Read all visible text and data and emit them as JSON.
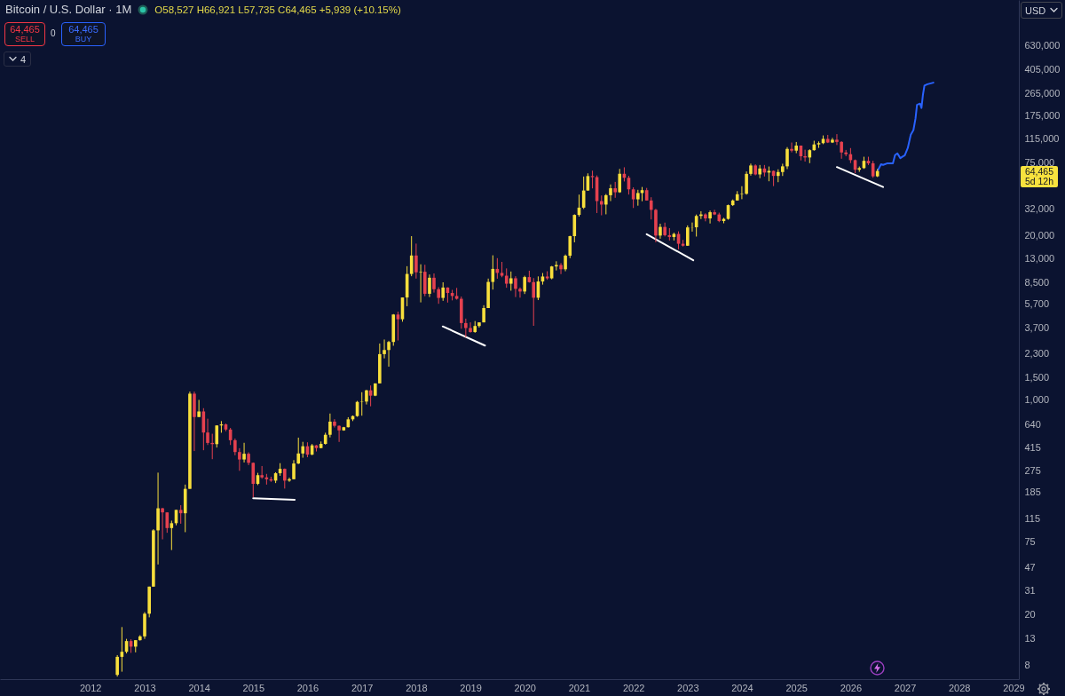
{
  "chart_data": {
    "type": "candlestick",
    "title": "Bitcoin / U.S. Dollar · 1M",
    "annotations": [
      "O58,527 H66,921 L57,735 C64,465 +5,939 (+10.15%)",
      "64,465",
      "SELL",
      "0",
      "64,465",
      "BUY",
      "4",
      "USD",
      "64,465",
      "5d 12h"
    ],
    "x": [
      "2012-07",
      "2012-08",
      "2012-09",
      "2012-10",
      "2012-11",
      "2012-12",
      "2013-01",
      "2013-02",
      "2013-03",
      "2013-04",
      "2013-05",
      "2013-06",
      "2013-07",
      "2013-08",
      "2013-09",
      "2013-10",
      "2013-11",
      "2013-12",
      "2014-01",
      "2014-02",
      "2014-03",
      "2014-04",
      "2014-05",
      "2014-06",
      "2014-07",
      "2014-08",
      "2014-09",
      "2014-10",
      "2014-11",
      "2014-12",
      "2015-01",
      "2015-02",
      "2015-03",
      "2015-04",
      "2015-05",
      "2015-06",
      "2015-07",
      "2015-08",
      "2015-09",
      "2015-10",
      "2015-11",
      "2015-12",
      "2016-01",
      "2016-02",
      "2016-03",
      "2016-04",
      "2016-05",
      "2016-06",
      "2016-07",
      "2016-08",
      "2016-09",
      "2016-10",
      "2016-11",
      "2016-12",
      "2017-01",
      "2017-02",
      "2017-03",
      "2017-04",
      "2017-05",
      "2017-06",
      "2017-07",
      "2017-08",
      "2017-09",
      "2017-10",
      "2017-11",
      "2017-12",
      "2018-01",
      "2018-02",
      "2018-03",
      "2018-04",
      "2018-05",
      "2018-06",
      "2018-07",
      "2018-08",
      "2018-09",
      "2018-10",
      "2018-11",
      "2018-12",
      "2019-01",
      "2019-02",
      "2019-03",
      "2019-04",
      "2019-05",
      "2019-06",
      "2019-07",
      "2019-08",
      "2019-09",
      "2019-10",
      "2019-11",
      "2019-12",
      "2020-01",
      "2020-02",
      "2020-03",
      "2020-04",
      "2020-05",
      "2020-06",
      "2020-07",
      "2020-08",
      "2020-09",
      "2020-10",
      "2020-11",
      "2020-12",
      "2021-01",
      "2021-02",
      "2021-03",
      "2021-04",
      "2021-05",
      "2021-06",
      "2021-07",
      "2021-08",
      "2021-09",
      "2021-10",
      "2021-11",
      "2021-12",
      "2022-01",
      "2022-02",
      "2022-03",
      "2022-04",
      "2022-05",
      "2022-06",
      "2022-07",
      "2022-08",
      "2022-09",
      "2022-10",
      "2022-11",
      "2022-12",
      "2023-01",
      "2023-02",
      "2023-03",
      "2023-04",
      "2023-05",
      "2023-06",
      "2023-07",
      "2023-08",
      "2023-09",
      "2023-10",
      "2023-11",
      "2023-12",
      "2024-01",
      "2024-02",
      "2024-03",
      "2024-04",
      "2024-05",
      "2024-06",
      "2024-07",
      "2024-08",
      "2024-09",
      "2024-10",
      "2024-11",
      "2024-12",
      "2025-01",
      "2025-02",
      "2025-03",
      "2025-04",
      "2025-05",
      "2025-06",
      "2025-07",
      "2025-08",
      "2025-09",
      "2025-10",
      "2025-11",
      "2025-12",
      "2026-01",
      "2026-02",
      "2026-03",
      "2026-04",
      "2026-05",
      "2026-06",
      "2026-07"
    ],
    "ohlc": [
      [
        6.7,
        9.6,
        6.5,
        9.3
      ],
      [
        9.3,
        16,
        7.1,
        10.2
      ],
      [
        10.2,
        12.9,
        9.9,
        12.4
      ],
      [
        12.4,
        12.8,
        10,
        11.2
      ],
      [
        11.2,
        12.6,
        10.1,
        12.6
      ],
      [
        12.6,
        13.8,
        12.5,
        13.5
      ],
      [
        13.5,
        21,
        12.9,
        20.4
      ],
      [
        20.4,
        33.4,
        19.1,
        33.4
      ],
      [
        33.4,
        95,
        33.4,
        93
      ],
      [
        93,
        266,
        50,
        139
      ],
      [
        139,
        140,
        79,
        129
      ],
      [
        129,
        129,
        89,
        97
      ],
      [
        97,
        111,
        65,
        106
      ],
      [
        106,
        135,
        102,
        135
      ],
      [
        135,
        147,
        105,
        127
      ],
      [
        127,
        214,
        90,
        198
      ],
      [
        198,
        1163,
        198,
        1120
      ],
      [
        1120,
        1163,
        394,
        732
      ],
      [
        732,
        1000,
        732,
        810
      ],
      [
        810,
        860,
        400,
        552
      ],
      [
        552,
        710,
        440,
        457
      ],
      [
        457,
        540,
        340,
        447
      ],
      [
        447,
        630,
        420,
        628
      ],
      [
        628,
        680,
        550,
        640
      ],
      [
        640,
        650,
        565,
        583
      ],
      [
        583,
        600,
        440,
        480
      ],
      [
        480,
        495,
        365,
        387
      ],
      [
        387,
        415,
        275,
        338
      ],
      [
        338,
        458,
        320,
        375
      ],
      [
        375,
        385,
        305,
        318
      ],
      [
        318,
        320,
        170,
        217
      ],
      [
        217,
        265,
        212,
        254
      ],
      [
        254,
        300,
        238,
        244
      ],
      [
        244,
        260,
        214,
        236
      ],
      [
        236,
        247,
        225,
        230
      ],
      [
        230,
        268,
        220,
        263
      ],
      [
        263,
        316,
        251,
        285
      ],
      [
        285,
        287,
        199,
        230
      ],
      [
        230,
        243,
        225,
        236
      ],
      [
        236,
        334,
        235,
        314
      ],
      [
        314,
        503,
        311,
        377
      ],
      [
        377,
        466,
        349,
        430
      ],
      [
        430,
        462,
        352,
        369
      ],
      [
        369,
        448,
        366,
        437
      ],
      [
        437,
        440,
        391,
        416
      ],
      [
        416,
        469,
        414,
        449
      ],
      [
        449,
        550,
        443,
        530
      ],
      [
        530,
        780,
        505,
        673
      ],
      [
        673,
        704,
        605,
        624
      ],
      [
        624,
        628,
        465,
        574
      ],
      [
        574,
        612,
        570,
        608
      ],
      [
        608,
        730,
        606,
        702
      ],
      [
        702,
        753,
        680,
        745
      ],
      [
        745,
        981,
        735,
        964
      ],
      [
        964,
        1150,
        750,
        970
      ],
      [
        970,
        1200,
        920,
        1190
      ],
      [
        1190,
        1300,
        890,
        1080
      ],
      [
        1080,
        1350,
        1070,
        1350
      ],
      [
        1350,
        2790,
        1350,
        2300
      ],
      [
        2300,
        3000,
        2130,
        2480
      ],
      [
        2480,
        2930,
        1830,
        2870
      ],
      [
        2870,
        4770,
        2680,
        4730
      ],
      [
        4730,
        4980,
        2950,
        4340
      ],
      [
        4340,
        6450,
        4150,
        6450
      ],
      [
        6450,
        11400,
        5500,
        9900
      ],
      [
        9900,
        19700,
        9500,
        13850
      ],
      [
        13850,
        17200,
        9100,
        10200
      ],
      [
        10200,
        11800,
        5900,
        10300
      ],
      [
        10300,
        11700,
        6600,
        6900
      ],
      [
        6900,
        9800,
        6500,
        9240
      ],
      [
        9240,
        9990,
        7050,
        7500
      ],
      [
        7500,
        7780,
        5750,
        6400
      ],
      [
        6400,
        8500,
        6070,
        7730
      ],
      [
        7730,
        7760,
        5880,
        7000
      ],
      [
        7000,
        7410,
        6120,
        6630
      ],
      [
        6630,
        7680,
        6200,
        6300
      ],
      [
        6300,
        6560,
        3650,
        4050
      ],
      [
        4050,
        4390,
        3130,
        3700
      ],
      [
        3700,
        4100,
        3400,
        3440
      ],
      [
        3440,
        4200,
        3390,
        3840
      ],
      [
        3840,
        4100,
        3730,
        4100
      ],
      [
        4100,
        5600,
        4100,
        5320
      ],
      [
        5320,
        9100,
        5320,
        8560
      ],
      [
        8560,
        13900,
        7450,
        10850
      ],
      [
        10850,
        13200,
        9080,
        10090
      ],
      [
        10090,
        12330,
        9330,
        9590
      ],
      [
        9590,
        10950,
        7700,
        8290
      ],
      [
        8290,
        10350,
        7300,
        9150
      ],
      [
        9150,
        9500,
        6500,
        7550
      ],
      [
        7550,
        7750,
        6430,
        7190
      ],
      [
        7190,
        9580,
        6870,
        9350
      ],
      [
        9350,
        10500,
        8450,
        8530
      ],
      [
        8530,
        9180,
        3850,
        6420
      ],
      [
        6420,
        9470,
        6150,
        8630
      ],
      [
        8630,
        10070,
        8150,
        9450
      ],
      [
        9450,
        10400,
        8900,
        9140
      ],
      [
        9140,
        11450,
        8980,
        11350
      ],
      [
        11350,
        12470,
        10550,
        11650
      ],
      [
        11650,
        12070,
        9870,
        10780
      ],
      [
        10780,
        14100,
        10400,
        13800
      ],
      [
        13800,
        19850,
        13200,
        19700
      ],
      [
        19700,
        29300,
        17600,
        28990
      ],
      [
        28990,
        41950,
        28100,
        33100
      ],
      [
        33100,
        58350,
        32300,
        45200
      ],
      [
        45200,
        61800,
        45000,
        58800
      ],
      [
        58800,
        64900,
        47000,
        57700
      ],
      [
        57700,
        59500,
        30000,
        37300
      ],
      [
        37300,
        41300,
        28800,
        35000
      ],
      [
        35000,
        42400,
        29300,
        41500
      ],
      [
        41500,
        50500,
        37300,
        47100
      ],
      [
        47100,
        52900,
        39600,
        43800
      ],
      [
        43800,
        67000,
        43300,
        61300
      ],
      [
        61300,
        69000,
        53300,
        57000
      ],
      [
        57000,
        59100,
        42000,
        46200
      ],
      [
        46200,
        47900,
        32900,
        38500
      ],
      [
        38500,
        45800,
        34300,
        43200
      ],
      [
        43200,
        48200,
        37200,
        45500
      ],
      [
        45500,
        47400,
        37700,
        37700
      ],
      [
        37700,
        40000,
        26700,
        31800
      ],
      [
        31800,
        32400,
        17600,
        19900
      ],
      [
        19900,
        24700,
        18800,
        23300
      ],
      [
        23300,
        25200,
        19600,
        20050
      ],
      [
        20050,
        22800,
        18200,
        19400
      ],
      [
        19400,
        21000,
        18200,
        20500
      ],
      [
        20500,
        21500,
        15500,
        17150
      ],
      [
        17150,
        18400,
        16300,
        16550
      ],
      [
        16550,
        23950,
        16500,
        23100
      ],
      [
        23100,
        25250,
        21400,
        23150
      ],
      [
        23150,
        29200,
        19550,
        28450
      ],
      [
        28450,
        31000,
        26900,
        29250
      ],
      [
        29250,
        29850,
        25800,
        27200
      ],
      [
        27200,
        31400,
        24800,
        30450
      ],
      [
        30450,
        31800,
        28900,
        29230
      ],
      [
        29230,
        30200,
        25400,
        25940
      ],
      [
        25940,
        27500,
        24900,
        26970
      ],
      [
        26970,
        35000,
        26600,
        34650
      ],
      [
        34650,
        38400,
        34100,
        37700
      ],
      [
        37700,
        44700,
        37600,
        42250
      ],
      [
        42250,
        48900,
        38600,
        42600
      ],
      [
        42600,
        64000,
        41900,
        61200
      ],
      [
        61200,
        73800,
        59300,
        71300
      ],
      [
        71300,
        72800,
        59600,
        60600
      ],
      [
        60600,
        71950,
        56600,
        67500
      ],
      [
        67500,
        71950,
        58400,
        62700
      ],
      [
        62700,
        70000,
        53500,
        64600
      ],
      [
        64600,
        65100,
        49000,
        58950
      ],
      [
        58950,
        66500,
        52600,
        63300
      ],
      [
        63300,
        73600,
        58900,
        70200
      ],
      [
        70200,
        99600,
        66800,
        96400
      ],
      [
        96400,
        108300,
        90500,
        93400
      ],
      [
        93400,
        109350,
        89200,
        102400
      ],
      [
        102400,
        102500,
        78200,
        84350
      ],
      [
        84350,
        95000,
        76600,
        82500
      ],
      [
        82500,
        95800,
        74400,
        94200
      ],
      [
        94200,
        111900,
        93400,
        104600
      ],
      [
        104600,
        110500,
        98200,
        107100
      ],
      [
        107100,
        123200,
        105100,
        115700
      ],
      [
        115700,
        124400,
        107300,
        108300
      ],
      [
        108300,
        117900,
        107300,
        114000
      ],
      [
        114000,
        126200,
        103500,
        109500
      ],
      [
        109500,
        111000,
        80600,
        90400
      ],
      [
        90400,
        94600,
        84400,
        87600
      ],
      [
        87600,
        97900,
        74500,
        78600
      ],
      [
        78600,
        79500,
        62000,
        66000
      ],
      [
        66000,
        70000,
        63500,
        68000
      ],
      [
        68000,
        83600,
        67000,
        77600
      ],
      [
        77600,
        83600,
        71900,
        74200
      ],
      [
        74200,
        77600,
        57000,
        58527
      ],
      [
        58527,
        66921,
        57735,
        64465
      ]
    ],
    "colors": [
      "#f8df3c",
      "#f8df3c",
      "#f8df3c",
      "#e5414f",
      "#f8df3c",
      "#f8df3c",
      "#f8df3c",
      "#f8df3c",
      "#f8df3c",
      "#f8df3c",
      "#e5414f",
      "#e5414f",
      "#f8df3c",
      "#f8df3c",
      "#e5414f",
      "#f8df3c",
      "#f8df3c",
      "#e5414f",
      "#f8df3c",
      "#e5414f",
      "#e5414f",
      "#e5414f",
      "#f8df3c",
      "#f8df3c",
      "#e5414f",
      "#e5414f",
      "#e5414f",
      "#e5414f",
      "#f8df3c",
      "#e5414f",
      "#e5414f",
      "#f8df3c",
      "#e5414f",
      "#e5414f",
      "#e5414f",
      "#f8df3c",
      "#f8df3c",
      "#e5414f",
      "#f8df3c",
      "#f8df3c",
      "#f8df3c",
      "#f8df3c",
      "#e5414f",
      "#f8df3c",
      "#e5414f",
      "#f8df3c",
      "#f8df3c",
      "#f8df3c",
      "#e5414f",
      "#e5414f",
      "#f8df3c",
      "#f8df3c",
      "#f8df3c",
      "#f8df3c",
      "#f8df3c",
      "#f8df3c",
      "#e5414f",
      "#f8df3c",
      "#f8df3c",
      "#f8df3c",
      "#f8df3c",
      "#f8df3c",
      "#e5414f",
      "#f8df3c",
      "#f8df3c",
      "#f8df3c",
      "#e5414f",
      "#f8df3c",
      "#e5414f",
      "#f8df3c",
      "#e5414f",
      "#e5414f",
      "#f8df3c",
      "#e5414f",
      "#e5414f",
      "#e5414f",
      "#e5414f",
      "#e5414f",
      "#e5414f",
      "#f8df3c",
      "#f8df3c",
      "#f8df3c",
      "#f8df3c",
      "#f8df3c",
      "#e5414f",
      "#e5414f",
      "#e5414f",
      "#f8df3c",
      "#e5414f",
      "#e5414f",
      "#f8df3c",
      "#e5414f",
      "#e5414f",
      "#f8df3c",
      "#f8df3c",
      "#e5414f",
      "#f8df3c",
      "#f8df3c",
      "#e5414f",
      "#f8df3c",
      "#f8df3c",
      "#f8df3c",
      "#f8df3c",
      "#f8df3c",
      "#f8df3c",
      "#e5414f",
      "#e5414f",
      "#e5414f",
      "#f8df3c",
      "#f8df3c",
      "#e5414f",
      "#f8df3c",
      "#e5414f",
      "#e5414f",
      "#e5414f",
      "#f8df3c",
      "#f8df3c",
      "#e5414f",
      "#e5414f",
      "#e5414f",
      "#f8df3c",
      "#e5414f",
      "#e5414f",
      "#f8df3c",
      "#e5414f",
      "#e5414f",
      "#f8df3c",
      "#f8df3c",
      "#f8df3c",
      "#f8df3c",
      "#e5414f",
      "#f8df3c",
      "#e5414f",
      "#e5414f",
      "#f8df3c",
      "#f8df3c",
      "#f8df3c",
      "#f8df3c",
      "#f8df3c",
      "#f8df3c",
      "#f8df3c",
      "#e5414f",
      "#f8df3c",
      "#e5414f",
      "#f8df3c",
      "#e5414f",
      "#f8df3c",
      "#f8df3c",
      "#f8df3c",
      "#e5414f",
      "#f8df3c",
      "#e5414f",
      "#e5414f",
      "#f8df3c",
      "#f8df3c",
      "#f8df3c",
      "#f8df3c",
      "#e5414f",
      "#f8df3c",
      "#e5414f",
      "#e5414f",
      "#e5414f",
      "#e5414f",
      "#e5414f",
      "#f8df3c",
      "#f8df3c",
      "#e5414f",
      "#e5414f",
      "#f8df3c"
    ],
    "series": [
      {
        "type": "line",
        "color": "#2962ff",
        "x": [
          "2026-07-05",
          "2026-07-25",
          "2026-08-08",
          "2026-09-03",
          "2026-10-13",
          "2026-10-27",
          "2026-11-12",
          "2026-12-02",
          "2027-01-01",
          "2027-01-21",
          "2027-02-10",
          "2027-02-28",
          "2027-03-14",
          "2027-03-24",
          "2027-04-13",
          "2027-04-23",
          "2027-05-03",
          "2027-05-13",
          "2027-06-02",
          "2027-07-12"
        ],
        "values": [
          65600,
          73000,
          72000,
          74000,
          74000,
          86000,
          89000,
          81500,
          86000,
          98000,
          125000,
          136000,
          168000,
          215000,
          220000,
          203000,
          259000,
          305000,
          313000,
          322000
        ]
      },
      {
        "type": "line",
        "color": "#ffffff",
        "x": [
          "2015-01-01",
          "2015-10-07"
        ],
        "values": [
          167,
          162
        ]
      },
      {
        "type": "line",
        "color": "#ffffff",
        "x": [
          "2018-06-29",
          "2019-04-09"
        ],
        "values": [
          3810,
          2690
        ]
      },
      {
        "type": "line",
        "color": "#ffffff",
        "x": [
          "2022-04-01",
          "2023-02-08"
        ],
        "values": [
          20400,
          12700
        ]
      },
      {
        "type": "line",
        "color": "#ffffff",
        "x": [
          "2025-10-01",
          "2026-08-08"
        ],
        "values": [
          69300,
          48200
        ]
      }
    ],
    "xlim": [
      "2010-05-04",
      "2029-02-06"
    ],
    "ylim": [
      6.2,
      1450000
    ],
    "xticks": [
      "2012",
      "2013",
      "2014",
      "2015",
      "2016",
      "2017",
      "2018",
      "2019",
      "2020",
      "2021",
      "2022",
      "2023",
      "2024",
      "2025",
      "2026",
      "2027",
      "2028",
      "2029"
    ],
    "yticks": [
      8,
      13,
      20,
      31,
      47,
      75,
      115,
      185,
      275,
      415,
      640,
      {
        "value": 1000,
        "label": "1,000"
      },
      {
        "value": 1500,
        "label": "1,500"
      },
      {
        "value": 2300,
        "label": "2,300"
      },
      {
        "value": 3700,
        "label": "3,700"
      },
      {
        "value": 5700,
        "label": "5,700"
      },
      {
        "value": 8500,
        "label": "8,500"
      },
      {
        "value": 13000,
        "label": "13,000"
      },
      {
        "value": 20000,
        "label": "20,000"
      },
      {
        "value": 32000,
        "label": "32,000"
      },
      {
        "value": 75000,
        "label": "75,000"
      },
      {
        "value": 115000,
        "label": "115,000"
      },
      {
        "value": 175000,
        "label": "175,000"
      },
      {
        "value": 265000,
        "label": "265,000"
      },
      {
        "value": 405000,
        "label": "405,000"
      },
      {
        "value": 630000,
        "label": "630,000"
      }
    ],
    "log": true
  }
}
